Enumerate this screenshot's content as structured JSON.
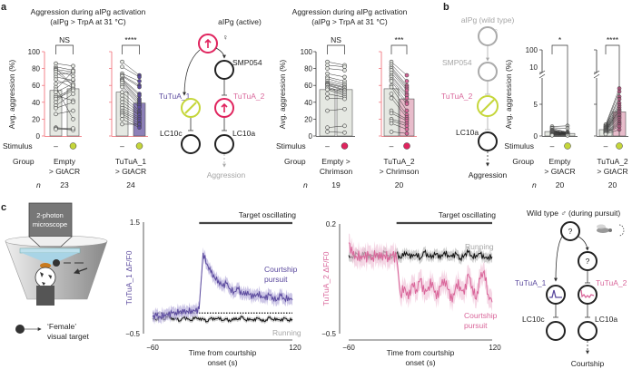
{
  "panel_labels": {
    "a": "a",
    "b": "b",
    "c": "c"
  },
  "colors": {
    "axis_red": "#f0646e",
    "green": "#c5d63a",
    "red": "#e0245e",
    "purple": "#5b4a9e",
    "pink": "#d9669a",
    "bar_gray": "#e5e8e2",
    "bar_purple": "#8d80b8",
    "bar_pink": "#e8bccb"
  },
  "panel_a": {
    "title1_line1": "Aggression during aIPg activation",
    "title1_line2": "(aIPg > TrpA at 31 °C)",
    "title2_line1": "Aggression during aIPg activation",
    "title2_line2": "(aIPg > TrpA at 31 °C)",
    "ylabel": "Avg. aggression (%)",
    "yticks": [
      "100",
      "80",
      "60",
      "40",
      "20",
      "0"
    ],
    "row_stimulus": "Stimulus",
    "row_group": "Group",
    "row_n": "n",
    "stim_off": "–",
    "diagram": {
      "top": "aIPg (active)",
      "female": "♀",
      "smp": "SMP054",
      "tutua1": "TuTuA_1",
      "tutua2": "TuTuA_2",
      "lc10c": "LC10c",
      "lc10a": "LC10a",
      "out": "Aggression"
    }
  },
  "panel_b": {
    "ylabel": "Avg. aggression (%)",
    "yticks": [
      "100",
      "10",
      "5",
      "0"
    ],
    "row_stimulus": "Stimulus",
    "row_group": "Group",
    "row_n": "n",
    "stim_off": "–",
    "diagram": {
      "top": "aIPg (wild type)",
      "female": "♀",
      "smp": "SMP054",
      "tutua2": "TuTuA_2",
      "lc10a": "LC10a",
      "out": "Aggression"
    }
  },
  "panel_c": {
    "microscope": [
      "2-photon",
      "microscope"
    ],
    "target": [
      "‘Female’",
      "visual target"
    ],
    "diagram": {
      "top": "Wild type ♂ (during pursuit)",
      "q": "?",
      "tutua1": "TuTuA_1",
      "tutua2": "TuTuA_2",
      "lc10c": "LC10c",
      "lc10a": "LC10a",
      "out": "Courtship"
    }
  },
  "chart_data": [
    {
      "type": "bar",
      "id": "a1",
      "group": [
        "Empty",
        "> GtACR"
      ],
      "n": "23",
      "sig": "NS",
      "stimulus": "green",
      "ylim": [
        0,
        100
      ],
      "means": [
        54,
        56
      ],
      "pre": [
        86,
        82,
        80,
        79,
        78,
        76,
        73,
        70,
        67,
        62,
        58,
        55,
        52,
        48,
        46,
        44,
        40,
        36,
        33,
        26,
        10,
        9,
        8
      ],
      "post": [
        83,
        78,
        60,
        76,
        71,
        60,
        75,
        66,
        57,
        67,
        20,
        77,
        62,
        42,
        56,
        54,
        60,
        50,
        40,
        30,
        8,
        7,
        9
      ]
    },
    {
      "type": "bar",
      "id": "a2",
      "group": [
        "TuTuA_1",
        "> GtACR"
      ],
      "n": "24",
      "sig": "****",
      "stimulus": "green",
      "ylim": [
        0,
        100
      ],
      "means": [
        52,
        39
      ],
      "pre": [
        88,
        82,
        74,
        72,
        71,
        68,
        67,
        66,
        65,
        63,
        60,
        58,
        52,
        48,
        44,
        40,
        36,
        33,
        30,
        28,
        26,
        24,
        20,
        14
      ],
      "post": [
        72,
        70,
        65,
        60,
        58,
        50,
        48,
        44,
        42,
        40,
        38,
        36,
        34,
        30,
        28,
        26,
        25,
        22,
        20,
        18,
        15,
        12,
        10,
        14
      ]
    },
    {
      "type": "bar",
      "id": "a3",
      "group": [
        "Empty >",
        "Chrimson"
      ],
      "n": "19",
      "sig": "NS",
      "stimulus": "red",
      "ylim": [
        0,
        100
      ],
      "means": [
        55,
        55
      ],
      "pre": [
        88,
        84,
        80,
        74,
        70,
        68,
        65,
        63,
        62,
        61,
        60,
        58,
        57,
        55,
        50,
        45,
        30,
        10,
        5
      ],
      "post": [
        84,
        82,
        78,
        70,
        65,
        62,
        60,
        58,
        57,
        55,
        54,
        52,
        50,
        48,
        46,
        44,
        32,
        12,
        4
      ]
    },
    {
      "type": "bar",
      "id": "a4",
      "group": [
        "TuTuA_2",
        "> Chrimson"
      ],
      "n": "20",
      "sig": "***",
      "stimulus": "red",
      "ylim": [
        0,
        100
      ],
      "means": [
        56,
        44
      ],
      "pre": [
        88,
        85,
        82,
        80,
        78,
        75,
        72,
        70,
        67,
        65,
        60,
        58,
        50,
        45,
        30,
        27,
        20,
        18,
        15,
        5
      ],
      "post": [
        72,
        65,
        60,
        58,
        56,
        54,
        50,
        48,
        45,
        40,
        38,
        30,
        25,
        22,
        20,
        18,
        15,
        12,
        8,
        3
      ]
    },
    {
      "type": "bar",
      "id": "b1",
      "group": [
        "Empty",
        "> GtACR"
      ],
      "n": "20",
      "sig": "*",
      "stimulus": "green",
      "ylim": [
        0,
        100
      ],
      "means": [
        0.7,
        0.4
      ],
      "pre": [
        1.5,
        1.3,
        1.2,
        1.0,
        0.9,
        0.8,
        0.8,
        0.7,
        0.6,
        0.6,
        0.5,
        0.5,
        0.4,
        0.4,
        0.3,
        0.3,
        0.2,
        0.2,
        0.1,
        0.1
      ],
      "post": [
        1.6,
        1.2,
        0.6,
        0.5,
        0.6,
        0.4,
        0.5,
        0.3,
        0.4,
        0.5,
        0.3,
        0.4,
        0.3,
        0.2,
        0.3,
        0.2,
        0.2,
        0.1,
        0.1,
        0.1
      ]
    },
    {
      "type": "bar",
      "id": "b2",
      "group": [
        "TuTuA_2",
        "> GtACR"
      ],
      "n": "20",
      "sig": "****",
      "stimulus": "green",
      "ylim": [
        0,
        100
      ],
      "means": [
        1.0,
        3.8
      ],
      "pre": [
        1.8,
        1.6,
        1.5,
        1.4,
        1.3,
        1.2,
        1.1,
        1.0,
        1.0,
        0.9,
        0.9,
        0.8,
        0.8,
        0.7,
        0.6,
        0.6,
        0.5,
        0.4,
        0.4,
        0.3
      ],
      "post": [
        7.5,
        7.0,
        6.2,
        5.8,
        5.2,
        4.8,
        4.5,
        4.2,
        4.0,
        3.8,
        3.5,
        3.3,
        3.0,
        2.8,
        2.5,
        2.2,
        2.0,
        1.8,
        1.5,
        1.0
      ]
    },
    {
      "type": "line",
      "id": "c1",
      "title": "Target oscillating",
      "ylabel": "TuTuA_1 ΔF/F0",
      "xlabel": [
        "Time from courtship",
        "onset (s)"
      ],
      "xlim": [
        -60,
        120
      ],
      "ylim": [
        -0.5,
        1.5
      ],
      "xticks": [
        "−60",
        "120"
      ],
      "yticks": [
        "1.5",
        "−0.5"
      ],
      "x_step": 5,
      "baseline": 0,
      "series": [
        {
          "name": "Courtship pursuit",
          "label": [
            "Courtship",
            "pursuit"
          ],
          "sem": 0.1,
          "values": [
            -0.2,
            -0.18,
            -0.2,
            -0.15,
            -0.17,
            -0.13,
            -0.12,
            -0.1,
            -0.12,
            -0.1,
            -0.08,
            -0.1,
            -0.06,
            0.95,
            0.75,
            0.6,
            0.5,
            0.45,
            0.35,
            0.4,
            0.3,
            0.25,
            0.3,
            0.2,
            0.25,
            0.2,
            0.15,
            0.22,
            0.18,
            0.12,
            0.2,
            0.15,
            0.1,
            0.18,
            0.12,
            0.15,
            0.1
          ]
        },
        {
          "name": "Running",
          "label": [
            "Running"
          ],
          "sem": 0.04,
          "values": [
            -0.22,
            -0.26,
            -0.2,
            -0.24,
            -0.18,
            -0.25,
            -0.22,
            -0.27,
            -0.21,
            -0.24,
            -0.26,
            -0.2,
            -0.25,
            -0.23,
            -0.28,
            -0.22,
            -0.25,
            -0.21,
            -0.26,
            -0.24,
            -0.28,
            -0.22,
            -0.25,
            -0.2,
            -0.26,
            -0.23,
            -0.27,
            -0.22,
            -0.25,
            -0.28,
            -0.21,
            -0.25,
            -0.23,
            -0.27,
            -0.22,
            -0.26,
            -0.24
          ]
        }
      ]
    },
    {
      "type": "line",
      "id": "c2",
      "title": "Target oscillating",
      "ylabel": "TuTuA_2 ΔF/F0",
      "xlabel": [
        "Time from courtship",
        "onset (s)"
      ],
      "xlim": [
        -60,
        120
      ],
      "ylim": [
        -0.5,
        0.2
      ],
      "xticks": [
        "−60",
        "120"
      ],
      "yticks": [
        "0.2",
        "−0.5"
      ],
      "x_step": 5,
      "series": [
        {
          "name": "Courtship pursuit",
          "label": [
            "Courtship",
            "pursuit"
          ],
          "sem": 0.06,
          "values": [
            0.08,
            0.0,
            -0.01,
            0.0,
            -0.02,
            0.0,
            -0.01,
            0.01,
            -0.02,
            0.0,
            -0.01,
            0.0,
            -0.02,
            -0.25,
            -0.2,
            -0.28,
            -0.18,
            -0.22,
            -0.15,
            -0.25,
            -0.2,
            -0.17,
            -0.28,
            -0.2,
            -0.15,
            -0.22,
            -0.3,
            -0.18,
            -0.2,
            -0.25,
            -0.12,
            -0.2,
            -0.28,
            -0.15,
            -0.1,
            -0.25,
            -0.3
          ]
        },
        {
          "name": "Running",
          "label": [
            "Running"
          ],
          "sem": 0.03,
          "values": [
            0.0,
            -0.02,
            0.01,
            -0.01,
            0.02,
            -0.02,
            0.0,
            0.01,
            -0.02,
            0.02,
            0.0,
            -0.01,
            0.01,
            -0.02,
            0.02,
            0.0,
            -0.01,
            0.01,
            -0.02,
            0.02,
            -0.01,
            0.0,
            0.01,
            -0.02,
            0.02,
            0.0,
            -0.01,
            0.01,
            -0.02,
            0.0,
            0.02,
            -0.01,
            0.0,
            0.01,
            -0.02,
            -0.01,
            -0.01
          ]
        }
      ]
    }
  ]
}
